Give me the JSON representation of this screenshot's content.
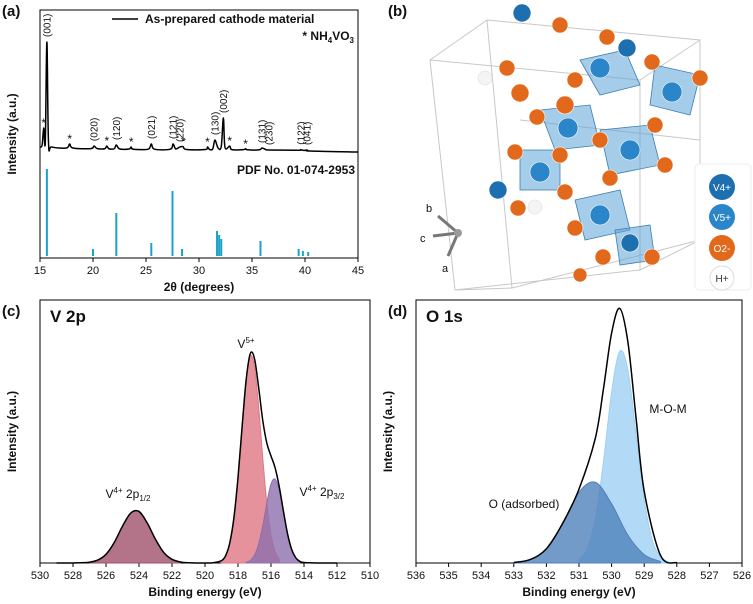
{
  "panels": [
    "(a)",
    "(b)",
    "(c)",
    "(d)"
  ],
  "structure": {
    "legend": [
      "V4+",
      "V5+",
      "O2-",
      "H+"
    ],
    "axes": [
      "a",
      "b",
      "c"
    ]
  },
  "chart_data": [
    {
      "type": "line",
      "xlabel": "2θ (degrees)",
      "ylabel": "Intensity (a.u.)",
      "xlim": [
        15,
        45
      ],
      "xticks": [
        15,
        20,
        25,
        30,
        35,
        40,
        45
      ],
      "ylim": [
        0,
        100
      ],
      "series": [
        {
          "name": "As-prepared cathode material",
          "color": "#000000",
          "x": [
            15.0,
            15.2,
            15.35,
            15.5,
            15.65,
            15.8,
            16.1,
            17.5,
            17.8,
            18.1,
            19.8,
            20.1,
            20.4,
            21.1,
            21.3,
            21.5,
            22.0,
            22.2,
            22.5,
            23.4,
            23.6,
            23.8,
            25.2,
            25.5,
            25.8,
            27.3,
            27.55,
            27.8,
            28.2,
            28.5,
            28.8,
            30.6,
            30.8,
            31.0,
            31.3,
            31.5,
            31.8,
            32.1,
            32.3,
            32.45,
            32.9,
            33.1,
            34.2,
            34.4,
            34.6,
            35.7,
            35.95,
            36.3,
            36.6,
            39.3,
            39.6,
            39.9,
            40.2,
            40.5,
            45.0
          ],
          "values": [
            8.7,
            10,
            21.3,
            12,
            78.7,
            12,
            8.7,
            8.0,
            10.7,
            8.0,
            7.6,
            9.3,
            7.6,
            7.5,
            9.3,
            7.5,
            7.5,
            10.0,
            7.4,
            7.3,
            8.7,
            7.2,
            7.2,
            10.7,
            7.2,
            7.2,
            10.7,
            7.4,
            8.7,
            8.9,
            7.0,
            7.0,
            8.7,
            7.0,
            7.4,
            13.3,
            8.0,
            9,
            28.0,
            8.5,
            9.3,
            6.9,
            6.9,
            7.5,
            6.8,
            6.8,
            8.0,
            7.0,
            6.7,
            6.5,
            6.8,
            6.4,
            6.7,
            6.0,
            5.3
          ]
        }
      ],
      "impurity_label": {
        "marker": "*",
        "parts": [
          "NH",
          "4",
          "VO",
          "3"
        ]
      },
      "asterisks": {
        "label": "*",
        "x": [
          15.35,
          17.8,
          21.3,
          23.6,
          28.5,
          30.8,
          32.9,
          34.4
        ]
      },
      "peak_labels": [
        {
          "text": "(001)",
          "x": 15.65
        },
        {
          "text": "(020)",
          "x": 20.1
        },
        {
          "text": "(120)",
          "x": 22.2
        },
        {
          "text": "(021)",
          "x": 25.5
        },
        {
          "text": "(121)",
          "x": 27.55
        },
        {
          "text": "(220)",
          "x": 28.2
        },
        {
          "text": "(130)",
          "x": 31.5
        },
        {
          "text": "(002)",
          "x": 32.3
        },
        {
          "text": "(131)",
          "x": 35.95
        },
        {
          "text": "(230)",
          "x": 36.6
        },
        {
          "text": "(122)",
          "x": 39.6
        },
        {
          "text": "(041)",
          "x": 40.2
        }
      ],
      "reference": {
        "name": "PDF No. 01-074-2953",
        "color": "#1ba3c6",
        "ylim": [
          0,
          100
        ],
        "x": [
          15.65,
          20.0,
          22.2,
          25.5,
          27.5,
          28.4,
          31.7,
          31.9,
          32.1,
          35.8,
          39.4,
          39.8,
          40.3
        ],
        "values": [
          96.7,
          7.8,
          47.8,
          14.4,
          72.2,
          7.8,
          27.8,
          23.3,
          18.9,
          16.7,
          7.8,
          5.6,
          4.4
        ]
      }
    },
    {
      "type": "area",
      "title": "V 2p",
      "xlabel": "Binding energy (eV)",
      "ylabel": "Intensity (a.u.)",
      "xlim": [
        530,
        510
      ],
      "xticks": [
        530,
        528,
        526,
        524,
        522,
        520,
        518,
        516,
        514,
        512,
        510
      ],
      "ylim": [
        0,
        100
      ],
      "series": [
        {
          "label": {
            "main": "V",
            "sup": "4+",
            "rest": " 2p",
            "sub": "1/2"
          },
          "color": "#a0506a",
          "filled": true,
          "x": [
            521.5,
            522,
            522.5,
            523,
            523.5,
            524,
            524.5,
            525,
            525.5,
            526,
            526.5,
            527
          ],
          "values": [
            0.4,
            1.4,
            4.0,
            9.0,
            15.2,
            19.6,
            19.0,
            14.0,
            7.8,
            3.3,
            1.1,
            0.3
          ]
        },
        {
          "label": {
            "main": "V",
            "sup": "5+"
          },
          "color": "#e07783",
          "filled": true,
          "x": [
            515.5,
            515.75,
            516,
            516.25,
            516.5,
            516.75,
            517,
            517.25,
            517.5,
            517.75,
            518,
            518.25,
            518.5,
            518.75,
            519
          ],
          "values": [
            1.4,
            4.3,
            10.7,
            22.6,
            40.0,
            59.6,
            74.7,
            78.7,
            69.7,
            51.9,
            32.5,
            17.1,
            7.6,
            2.8,
            0.9
          ]
        },
        {
          "label": {
            "main": "V",
            "sup": "4+",
            "rest": " 2p",
            "sub": "3/2"
          },
          "color": "#8e6fae",
          "filled": true,
          "x": [
            514.25,
            514.5,
            514.75,
            515,
            515.25,
            515.5,
            515.75,
            516,
            516.25,
            516.5,
            516.75,
            517,
            517.25,
            517.5
          ],
          "values": [
            0.6,
            2.0,
            5.2,
            11.1,
            19.4,
            27.6,
            31.9,
            30.0,
            22.9,
            14.2,
            7.2,
            3.0,
            1.0,
            0.3
          ]
        },
        {
          "color": "#000000",
          "filled": false,
          "x": [
            529,
            528,
            527.5,
            527,
            526.5,
            526,
            525.5,
            525,
            524.5,
            524,
            523.5,
            523,
            522.5,
            522,
            521.5,
            521,
            520,
            519.5,
            519,
            518.75,
            518.5,
            518.25,
            518,
            517.75,
            517.5,
            517.25,
            517,
            516.75,
            516.5,
            516.25,
            516,
            515.75,
            515.5,
            515.25,
            515,
            514.75,
            514.5,
            514.25,
            514,
            513,
            512
          ],
          "values": [
            0,
            0,
            0.1,
            0.3,
            1.1,
            3.3,
            7.8,
            14.0,
            19.0,
            19.6,
            15.2,
            9.0,
            4.0,
            1.4,
            0.4,
            0.1,
            0,
            0.1,
            0.9,
            2.8,
            7.6,
            17.1,
            32.5,
            51.9,
            70.0,
            79.7,
            77.7,
            66.8,
            54.2,
            45.5,
            40.7,
            36.2,
            29.0,
            19.8,
            11.2,
            5.2,
            2.0,
            0.6,
            0.2,
            0,
            0
          ]
        }
      ]
    },
    {
      "type": "area",
      "title": "O 1s",
      "xlabel": "Binding energy (eV)",
      "ylabel": "Intensity (a.u.)",
      "xlim": [
        536,
        526
      ],
      "xticks": [
        536,
        535,
        534,
        533,
        532,
        531,
        530,
        529,
        528,
        527,
        526
      ],
      "ylim": [
        0,
        100
      ],
      "series": [
        {
          "label": "M-O-M",
          "color": "#9fd0f2",
          "filled": true,
          "x": [
            531,
            530.75,
            530.5,
            530.25,
            530,
            529.75,
            529.5,
            529.25,
            529,
            528.75,
            528.5,
            528.25
          ],
          "values": [
            1.2,
            5.3,
            16.7,
            38.4,
            64.9,
            80.5,
            73.4,
            49.1,
            24.1,
            8.7,
            2.3,
            0.5
          ]
        },
        {
          "label": "O (adsorbed)",
          "color": "#4f82bd",
          "filled": true,
          "x": [
            533,
            532.5,
            532,
            531.5,
            531,
            530.5,
            530,
            529.5,
            529,
            528.5
          ],
          "values": [
            0.2,
            1.3,
            5.4,
            15.1,
            26.9,
            30.7,
            22.5,
            10.6,
            3.2,
            0.6
          ]
        },
        {
          "color": "#000000",
          "filled": false,
          "x": [
            533,
            532.5,
            532,
            531.5,
            531,
            530.5,
            530.25,
            530,
            529.75,
            529.5,
            529.25,
            529,
            528.5,
            528
          ],
          "values": [
            0.2,
            1.3,
            5.4,
            15.1,
            28.1,
            47.4,
            66.2,
            87.4,
            96.8,
            84.0,
            55.2,
            27.3,
            2.9,
            0.1
          ]
        }
      ]
    }
  ]
}
